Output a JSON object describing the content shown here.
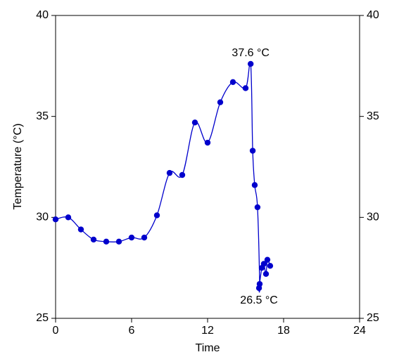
{
  "chart_data": {
    "type": "line",
    "x_label": "Time",
    "y_label": "Temperature (°C)",
    "x": [
      0,
      1,
      2,
      3,
      4,
      5,
      6,
      7,
      8,
      9,
      10,
      11,
      12,
      13,
      14,
      15,
      15.4,
      15.56,
      15.72,
      15.94,
      16.11,
      16.06,
      16.28,
      16.44,
      16.61,
      16.72,
      16.94
    ],
    "values": [
      29.9,
      30.0,
      29.4,
      28.9,
      28.8,
      28.8,
      29.0,
      29.0,
      30.1,
      32.2,
      32.1,
      34.7,
      33.7,
      35.7,
      36.7,
      36.4,
      37.6,
      33.3,
      31.6,
      30.5,
      26.7,
      26.5,
      27.5,
      27.7,
      27.2,
      27.9,
      27.6
    ],
    "value_labels": [
      null,
      null,
      null,
      null,
      null,
      null,
      null,
      null,
      null,
      null,
      null,
      null,
      null,
      null,
      null,
      null,
      "37.6 °C",
      null,
      null,
      null,
      null,
      "26.5 °C",
      null,
      null,
      null,
      null,
      null
    ],
    "color": "#0000cc",
    "xlim": [
      0,
      24
    ],
    "xticks": [
      0,
      6,
      12,
      18,
      24
    ],
    "ylim": [
      25,
      40
    ],
    "yticks": [
      25,
      30,
      35,
      40
    ],
    "y2lim": [
      25,
      40
    ],
    "y2ticks": [
      25,
      30,
      35,
      40
    ]
  }
}
